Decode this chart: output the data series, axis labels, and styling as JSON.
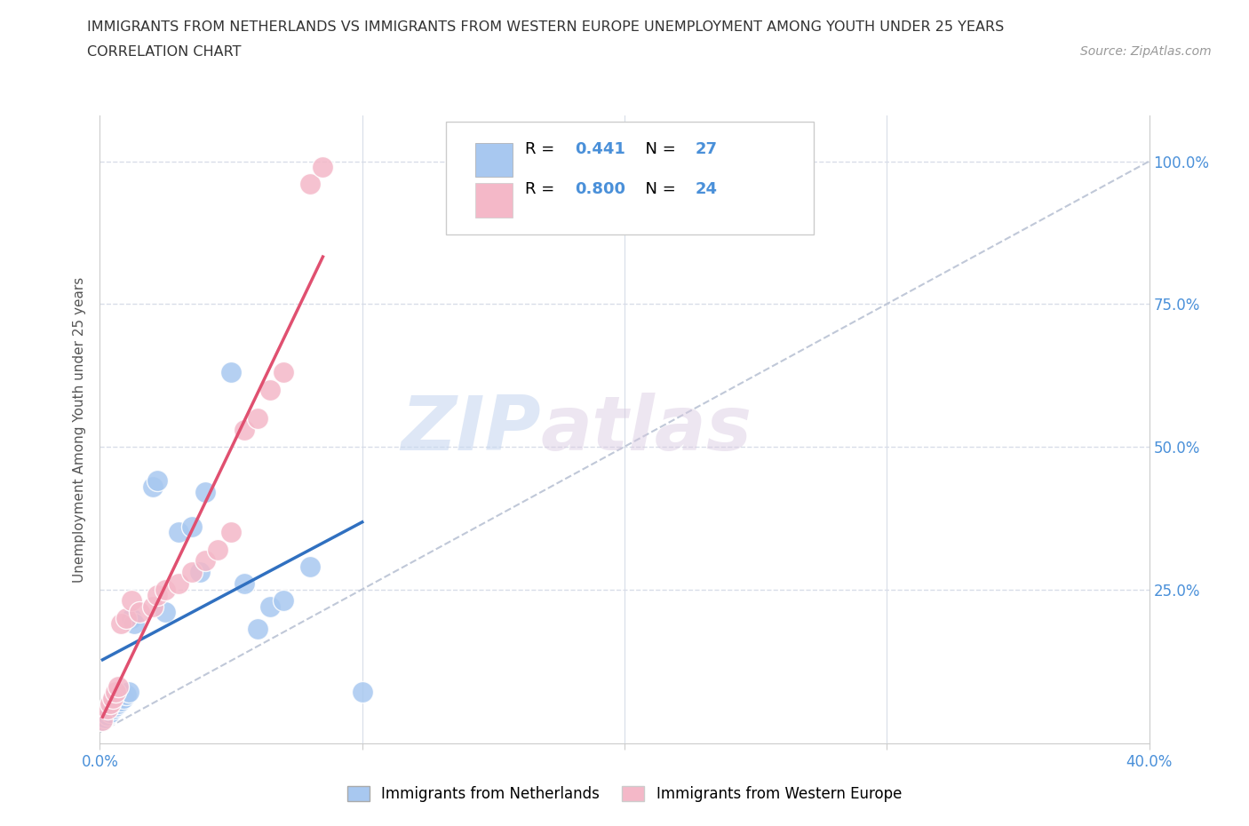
{
  "title_line1": "IMMIGRANTS FROM NETHERLANDS VS IMMIGRANTS FROM WESTERN EUROPE UNEMPLOYMENT AMONG YOUTH UNDER 25 YEARS",
  "title_line2": "CORRELATION CHART",
  "source": "Source: ZipAtlas.com",
  "ylabel": "Unemployment Among Youth under 25 years",
  "xlim": [
    0.0,
    0.4
  ],
  "ylim": [
    -0.02,
    1.08
  ],
  "xticks": [
    0.0,
    0.1,
    0.2,
    0.3,
    0.4
  ],
  "yticks": [
    0.0,
    0.25,
    0.5,
    0.75,
    1.0
  ],
  "netherlands_color": "#a8c8f0",
  "western_europe_color": "#f4b8c8",
  "netherlands_line_color": "#3070c0",
  "western_europe_line_color": "#e05070",
  "diagonal_color": "#c0c8d8",
  "R_netherlands": 0.441,
  "N_netherlands": 27,
  "R_western_europe": 0.8,
  "N_western_europe": 24,
  "netherlands_x": [
    0.001,
    0.002,
    0.003,
    0.004,
    0.005,
    0.006,
    0.007,
    0.008,
    0.009,
    0.01,
    0.011,
    0.012,
    0.013,
    0.02,
    0.022,
    0.025,
    0.03,
    0.035,
    0.038,
    0.04,
    0.05,
    0.055,
    0.06,
    0.065,
    0.07,
    0.08,
    0.1
  ],
  "netherlands_y": [
    0.02,
    0.025,
    0.03,
    0.035,
    0.04,
    0.045,
    0.05,
    0.055,
    0.06,
    0.065,
    0.07,
    0.2,
    0.19,
    0.43,
    0.44,
    0.21,
    0.35,
    0.36,
    0.28,
    0.42,
    0.63,
    0.26,
    0.18,
    0.22,
    0.23,
    0.29,
    0.07
  ],
  "western_europe_x": [
    0.001,
    0.003,
    0.004,
    0.005,
    0.006,
    0.007,
    0.008,
    0.01,
    0.012,
    0.015,
    0.02,
    0.022,
    0.025,
    0.03,
    0.035,
    0.04,
    0.045,
    0.05,
    0.055,
    0.06,
    0.065,
    0.07,
    0.08,
    0.085
  ],
  "western_europe_y": [
    0.02,
    0.04,
    0.05,
    0.06,
    0.07,
    0.08,
    0.19,
    0.2,
    0.23,
    0.21,
    0.22,
    0.24,
    0.25,
    0.26,
    0.28,
    0.3,
    0.32,
    0.35,
    0.53,
    0.55,
    0.6,
    0.63,
    0.96,
    0.99
  ],
  "watermark_zip": "ZIP",
  "watermark_atlas": "atlas",
  "background_color": "#ffffff",
  "grid_color": "#d8dde8"
}
